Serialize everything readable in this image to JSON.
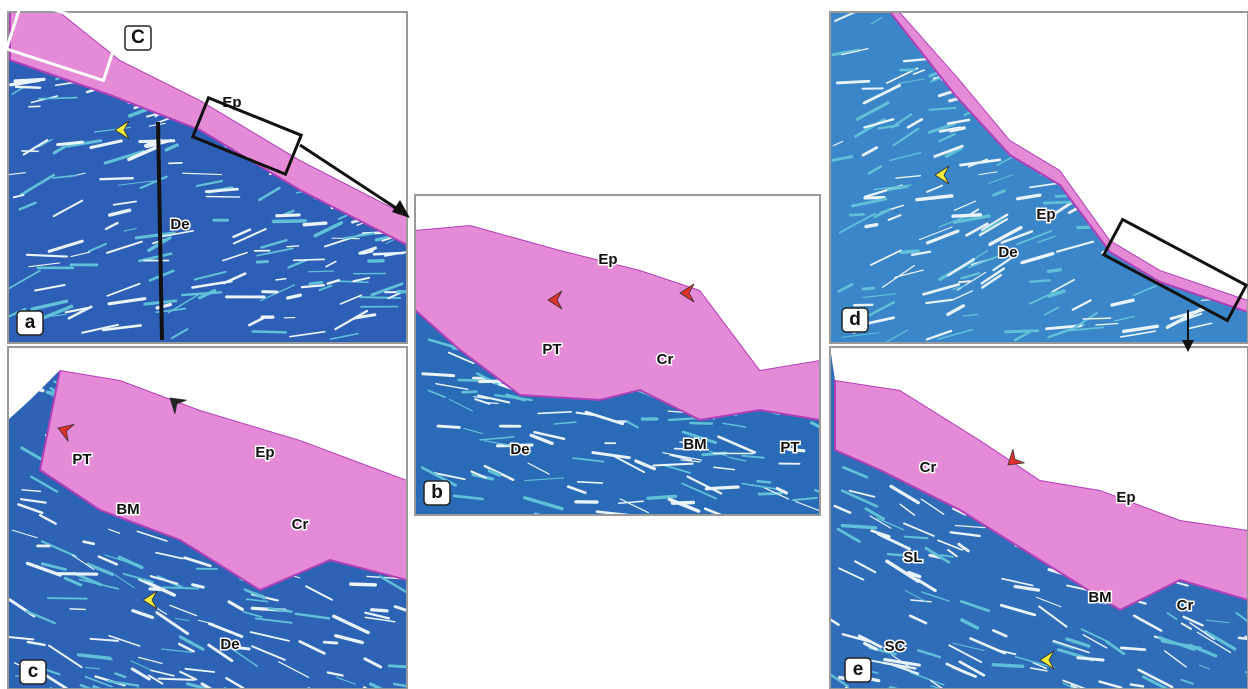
{
  "panels": [
    {
      "letter": "a",
      "labels": [
        "C",
        "Ep",
        "De"
      ]
    },
    {
      "letter": "b",
      "labels": [
        "Ep",
        "PT",
        "Cr",
        "De",
        "BM",
        "PT"
      ]
    },
    {
      "letter": "c",
      "labels": [
        "PT",
        "Ep",
        "BM",
        "Cr",
        "De"
      ]
    },
    {
      "letter": "d",
      "labels": [
        "Ep",
        "De"
      ]
    },
    {
      "letter": "e",
      "labels": [
        "Cr",
        "Ep",
        "SL",
        "BM",
        "Cr",
        "SC"
      ]
    }
  ]
}
